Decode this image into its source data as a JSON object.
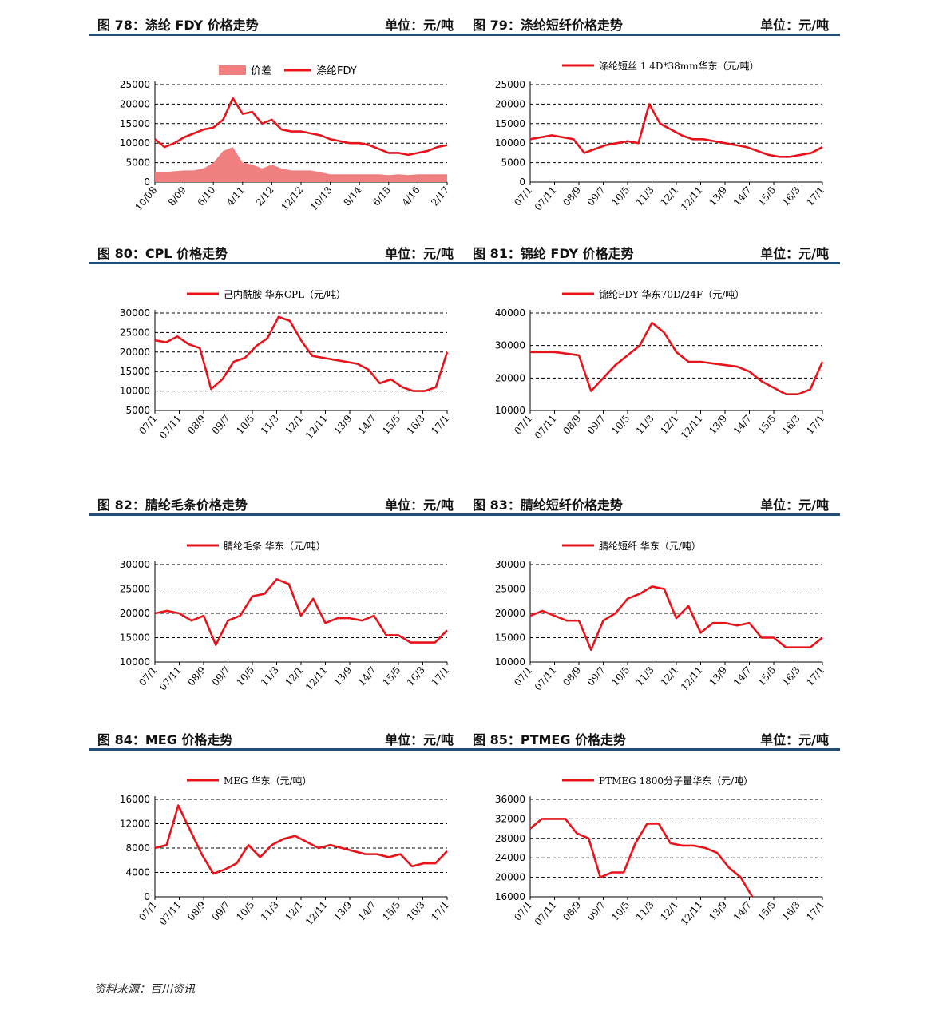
{
  "panels": [
    {
      "title": "图 78：涤纶 FDY 价格走势",
      "unit": "单位：元/吨",
      "chart_data": {
        "type": "line",
        "legend": [
          "价差",
          "涤纶FDY"
        ],
        "ylim": [
          0,
          25000
        ],
        "yticks": [
          0,
          5000,
          10000,
          15000,
          20000,
          25000
        ],
        "ytick_labels": [
          "0",
          "5000",
          "10000",
          "15000",
          "20000",
          "25000"
        ],
        "xticks": [
          "10/08",
          "8/09",
          "6/10",
          "4/11",
          "2/12",
          "12/12",
          "10/13",
          "8/14",
          "6/15",
          "4/16",
          "2/17"
        ],
        "series": [
          {
            "name": "涤纶FDY",
            "color": "#e8141c",
            "kind": "line",
            "values": [
              11000,
              9000,
              10000,
              11500,
              12500,
              13500,
              14000,
              16000,
              21500,
              17500,
              18000,
              15000,
              16000,
              13500,
              13000,
              13000,
              12500,
              12000,
              11000,
              10500,
              10000,
              10000,
              9500,
              8500,
              7500,
              7500,
              7000,
              7500,
              8000,
              9000,
              9500
            ]
          },
          {
            "name": "价差",
            "color": "#f08080",
            "kind": "area",
            "values": [
              2500,
              2500,
              2800,
              3000,
              3000,
              3500,
              5000,
              8000,
              9000,
              5000,
              4500,
              3500,
              4500,
              3500,
              3000,
              3000,
              3000,
              2500,
              2000,
              2000,
              2000,
              2000,
              2000,
              2000,
              1800,
              2000,
              1800,
              2000,
              2000,
              2000,
              2000
            ]
          }
        ]
      }
    },
    {
      "title": "图 79：涤纶短纤价格走势",
      "unit": "单位：元/吨",
      "chart_data": {
        "type": "line",
        "legend": [
          "涤纶短丝 1.4D*38mm华东（元/吨）"
        ],
        "ylim": [
          0,
          25000
        ],
        "yticks": [
          0,
          5000,
          10000,
          15000,
          20000,
          25000
        ],
        "ytick_labels": [
          "0",
          "5000",
          "10000",
          "15000",
          "20000",
          "25000"
        ],
        "xticks": [
          "07/1",
          "07/11",
          "08/9",
          "09/7",
          "10/5",
          "11/3",
          "12/1",
          "12/11",
          "13/9",
          "14/7",
          "15/5",
          "16/3",
          "17/1"
        ],
        "series": [
          {
            "name": "涤纶短丝",
            "color": "#e8141c",
            "kind": "line",
            "values": [
              11000,
              11500,
              12000,
              11500,
              11000,
              7500,
              8500,
              9500,
              10000,
              10500,
              10000,
              20000,
              15000,
              13500,
              12000,
              11000,
              11000,
              10500,
              10000,
              9500,
              9000,
              8000,
              7000,
              6500,
              6500,
              7000,
              7500,
              9000
            ]
          }
        ]
      }
    },
    {
      "title": "图 80：CPL 价格走势",
      "unit": "单位：元/吨",
      "chart_data": {
        "type": "line",
        "legend": [
          "己内酰胺 华东CPL（元/吨）"
        ],
        "ylim": [
          5000,
          30000
        ],
        "yticks": [
          5000,
          10000,
          15000,
          20000,
          25000,
          30000
        ],
        "ytick_labels": [
          "5000",
          "10000",
          "15000",
          "20000",
          "25000",
          "30000"
        ],
        "xticks": [
          "07/1",
          "07/11",
          "08/9",
          "09/7",
          "10/5",
          "11/3",
          "12/1",
          "12/11",
          "13/9",
          "14/7",
          "15/5",
          "16/3",
          "17/1"
        ],
        "series": [
          {
            "name": "己内酰胺",
            "color": "#e8141c",
            "kind": "line",
            "values": [
              23000,
              22500,
              24000,
              22000,
              21000,
              10500,
              13000,
              17500,
              18500,
              21500,
              23500,
              29000,
              28000,
              23000,
              19000,
              18500,
              18000,
              17500,
              17000,
              15500,
              12000,
              13000,
              11000,
              10000,
              10000,
              11000,
              20000
            ]
          }
        ]
      }
    },
    {
      "title": "图 81：锦纶 FDY 价格走势",
      "unit": "单位：元/吨",
      "chart_data": {
        "type": "line",
        "legend": [
          "锦纶FDY 华东70D/24F（元/吨）"
        ],
        "ylim": [
          10000,
          40000
        ],
        "yticks": [
          10000,
          20000,
          30000,
          40000
        ],
        "ytick_labels": [
          "10000",
          "20000",
          "30000",
          "40000"
        ],
        "xticks": [
          "07/1",
          "07/11",
          "08/9",
          "09/7",
          "10/5",
          "11/3",
          "12/1",
          "12/11",
          "13/9",
          "14/7",
          "15/5",
          "16/3",
          "17/1"
        ],
        "series": [
          {
            "name": "锦纶FDY",
            "color": "#e8141c",
            "kind": "line",
            "values": [
              28000,
              28000,
              28000,
              27500,
              27000,
              16000,
              20000,
              24000,
              27000,
              30000,
              37000,
              34000,
              28000,
              25000,
              25000,
              24500,
              24000,
              23500,
              22000,
              19000,
              17000,
              15000,
              15000,
              16500,
              25000
            ]
          }
        ]
      }
    },
    {
      "title": "图 82：腈纶毛条价格走势",
      "unit": "单位：元/吨",
      "chart_data": {
        "type": "line",
        "legend": [
          "腈纶毛条 华东（元/吨）"
        ],
        "ylim": [
          10000,
          30000
        ],
        "yticks": [
          10000,
          15000,
          20000,
          25000,
          30000
        ],
        "ytick_labels": [
          "10000",
          "15000",
          "20000",
          "25000",
          "30000"
        ],
        "xticks": [
          "07/1",
          "07/11",
          "08/9",
          "09/7",
          "10/5",
          "11/3",
          "12/1",
          "12/11",
          "13/9",
          "14/7",
          "15/5",
          "16/3",
          "17/1"
        ],
        "series": [
          {
            "name": "腈纶毛条",
            "color": "#e8141c",
            "kind": "line",
            "values": [
              20000,
              20500,
              20000,
              18500,
              19500,
              13500,
              18500,
              19500,
              23500,
              24000,
              27000,
              26000,
              19500,
              23000,
              18000,
              19000,
              19000,
              18500,
              19500,
              15500,
              15500,
              14000,
              14000,
              14000,
              16500
            ]
          }
        ]
      }
    },
    {
      "title": "图 83：腈纶短纤价格走势",
      "unit": "单位：元/吨",
      "chart_data": {
        "type": "line",
        "legend": [
          "腈纶短纤 华东（元/吨）"
        ],
        "ylim": [
          10000,
          30000
        ],
        "yticks": [
          10000,
          15000,
          20000,
          25000,
          30000
        ],
        "ytick_labels": [
          "10000",
          "15000",
          "20000",
          "25000",
          "30000"
        ],
        "xticks": [
          "07/1",
          "07/11",
          "08/9",
          "09/7",
          "10/5",
          "11/3",
          "12/1",
          "12/11",
          "13/9",
          "14/7",
          "15/5",
          "16/3",
          "17/1"
        ],
        "series": [
          {
            "name": "腈纶短纤",
            "color": "#e8141c",
            "kind": "line",
            "values": [
              19500,
              20500,
              19500,
              18500,
              18500,
              12500,
              18500,
              20000,
              23000,
              24000,
              25500,
              25000,
              19000,
              21500,
              16000,
              18000,
              18000,
              17500,
              18000,
              15000,
              15000,
              13000,
              13000,
              13000,
              15000
            ]
          }
        ]
      }
    },
    {
      "title": "图 84：MEG 价格走势",
      "unit": "单位：元/吨",
      "chart_data": {
        "type": "line",
        "legend": [
          "MEG 华东（元/吨）"
        ],
        "ylim": [
          0,
          16000
        ],
        "yticks": [
          0,
          4000,
          8000,
          12000,
          16000
        ],
        "ytick_labels": [
          "0",
          "4000",
          "8000",
          "12000",
          "16000"
        ],
        "xticks": [
          "07/1",
          "07/11",
          "08/9",
          "09/7",
          "10/5",
          "11/3",
          "12/1",
          "12/11",
          "13/9",
          "14/7",
          "15/5",
          "16/3",
          "17/1"
        ],
        "series": [
          {
            "name": "MEG",
            "color": "#e8141c",
            "kind": "line",
            "values": [
              8000,
              8500,
              15000,
              11000,
              7000,
              3800,
              4500,
              5500,
              8500,
              6500,
              8500,
              9500,
              10000,
              9000,
              8000,
              8500,
              8000,
              7500,
              7000,
              7000,
              6500,
              7000,
              5000,
              5500,
              5500,
              7500
            ]
          }
        ]
      }
    },
    {
      "title": "图 85：PTMEG 价格走势",
      "unit": "单位：元/吨",
      "chart_data": {
        "type": "line",
        "legend": [
          "PTMEG 1800分子量华东（元/吨）"
        ],
        "ylim": [
          16000,
          36000
        ],
        "yticks": [
          16000,
          20000,
          24000,
          28000,
          32000,
          36000
        ],
        "ytick_labels": [
          "16000",
          "20000",
          "24000",
          "28000",
          "32000",
          "36000"
        ],
        "xticks": [
          "07/1",
          "07/11",
          "08/9",
          "09/7",
          "10/5",
          "11/3",
          "12/1",
          "12/11",
          "13/9",
          "14/7",
          "15/5",
          "16/3",
          "17/1"
        ],
        "series": [
          {
            "name": "PTMEG",
            "color": "#e8141c",
            "kind": "line",
            "values": [
              30000,
              32000,
              32000,
              32000,
              29000,
              28000,
              20000,
              21000,
              21000,
              27000,
              31000,
              31000,
              27000,
              26500,
              26500,
              26000,
              25000,
              22000,
              20000,
              16000,
              null,
              null,
              null,
              null,
              null,
              null
            ]
          }
        ]
      }
    }
  ],
  "source": "资料来源：百川资讯"
}
